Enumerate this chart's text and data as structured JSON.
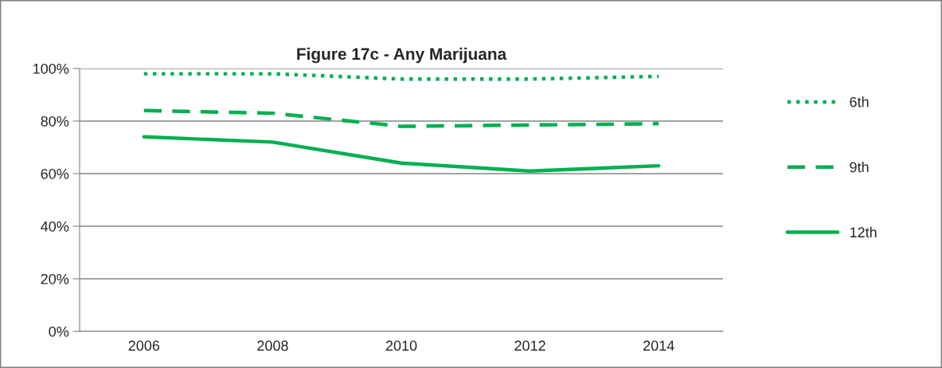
{
  "chart_data": {
    "type": "line",
    "title": "Figure 17c - Any Marijuana",
    "categories": [
      "2006",
      "2008",
      "2010",
      "2012",
      "2014"
    ],
    "series": [
      {
        "name": "6th",
        "color": "#00b050",
        "line_style": "dotted",
        "values": [
          98,
          98,
          96,
          96,
          97
        ]
      },
      {
        "name": "9th",
        "color": "#00b050",
        "line_style": "dashed",
        "values": [
          84,
          83,
          78,
          78.5,
          79
        ]
      },
      {
        "name": "12th",
        "color": "#00b050",
        "line_style": "solid",
        "values": [
          74,
          72,
          64,
          61,
          63
        ]
      }
    ],
    "ylim": [
      0,
      100
    ],
    "yticks": [
      {
        "value": 0,
        "label": "0%"
      },
      {
        "value": 20,
        "label": "20%"
      },
      {
        "value": 40,
        "label": "40%"
      },
      {
        "value": 60,
        "label": "60%"
      },
      {
        "value": 80,
        "label": "80%"
      },
      {
        "value": 100,
        "label": "100%"
      }
    ],
    "grid": "y",
    "legend": "right",
    "marker": "none"
  }
}
